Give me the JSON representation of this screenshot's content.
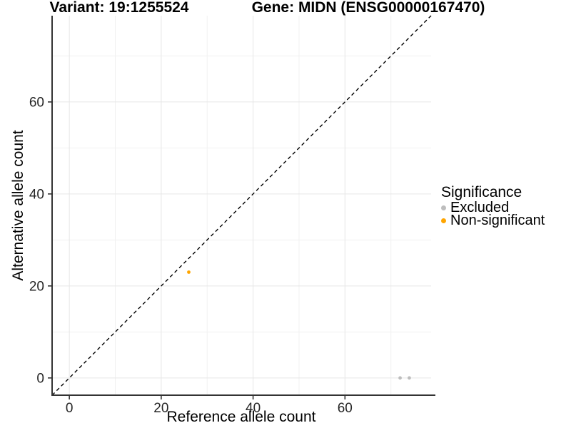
{
  "titles": {
    "variant": "Variant: 19:1255524",
    "gene": "Gene: MIDN (ENSG00000167470)"
  },
  "chart_data": {
    "type": "scatter",
    "title_left": "Variant: 19:1255524",
    "title_right": "Gene: MIDN (ENSG00000167470)",
    "xlabel": "Reference allele count",
    "ylabel": "Alternative allele count",
    "xlim": [
      -3.75,
      78.75
    ],
    "ylim": [
      -3.75,
      78.75
    ],
    "x_major_ticks": [
      0,
      20,
      40,
      60
    ],
    "y_major_ticks": [
      0,
      20,
      40,
      60
    ],
    "x_minor_ticks": [
      10,
      30,
      50,
      70
    ],
    "y_minor_ticks": [
      10,
      30,
      50,
      70
    ],
    "grid": "major and minor gridlines, light gray on white",
    "identity_line": {
      "style": "dashed",
      "color": "#000000",
      "from": -3.75,
      "to": 78.75
    },
    "series": [
      {
        "name": "Excluded",
        "color": "#BDBDBD",
        "points": [
          [
            72,
            0
          ],
          [
            74,
            0
          ]
        ]
      },
      {
        "name": "Non-significant",
        "color": "#FFA500",
        "points": [
          [
            26,
            23
          ]
        ]
      }
    ],
    "legend": {
      "title": "Significance",
      "position": "right",
      "entries": [
        {
          "label": "Excluded",
          "color": "#BDBDBD"
        },
        {
          "label": "Non-significant",
          "color": "#FFA500"
        }
      ]
    },
    "colors": {
      "grid_major": "#E6E6E6",
      "grid_minor": "#F1F1F1",
      "axis": "#333333",
      "tick_label": "#262626"
    }
  }
}
